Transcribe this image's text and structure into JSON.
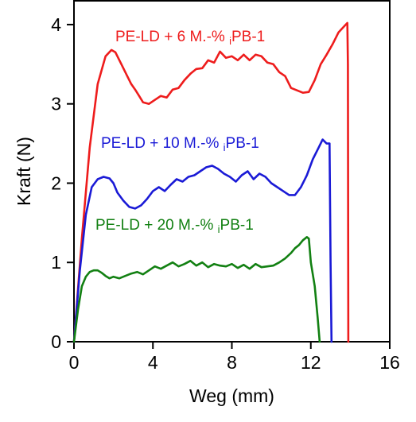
{
  "chart_data": {
    "type": "line",
    "title": "",
    "xlabel": "Weg (mm)",
    "ylabel": "Kraft (N)",
    "xlim": [
      0,
      16
    ],
    "ylim": [
      0,
      4.3
    ],
    "xticks": [
      "0",
      "4",
      "8",
      "12",
      "16"
    ],
    "yticks": [
      "0",
      "1",
      "2",
      "3",
      "4"
    ],
    "grid": false,
    "legend": "inline labels above each curve",
    "series": [
      {
        "name": "PE-LD + 6 M.-% iPB-1",
        "label_prefix": "PE-LD + 6 M.-% ",
        "label_sub": "i",
        "label_suffix": "PB-1",
        "color": "#ee1c1c",
        "x": [
          0,
          0.4,
          0.8,
          1.2,
          1.6,
          1.9,
          2.1,
          2.4,
          2.7,
          2.9,
          3.1,
          3.3,
          3.5,
          3.8,
          4.1,
          4.4,
          4.7,
          5.0,
          5.3,
          5.6,
          5.9,
          6.2,
          6.5,
          6.8,
          7.1,
          7.4,
          7.7,
          8.0,
          8.3,
          8.6,
          8.9,
          9.2,
          9.5,
          9.8,
          10.1,
          10.4,
          10.7,
          11.0,
          11.3,
          11.6,
          11.9,
          12.2,
          12.5,
          12.8,
          13.1,
          13.4,
          13.7,
          13.85,
          13.88,
          13.9
        ],
        "y": [
          0,
          1.3,
          2.45,
          3.25,
          3.6,
          3.68,
          3.65,
          3.5,
          3.35,
          3.25,
          3.18,
          3.1,
          3.02,
          3.0,
          3.05,
          3.1,
          3.08,
          3.18,
          3.2,
          3.3,
          3.38,
          3.44,
          3.45,
          3.55,
          3.52,
          3.66,
          3.58,
          3.6,
          3.55,
          3.62,
          3.55,
          3.62,
          3.6,
          3.52,
          3.5,
          3.4,
          3.35,
          3.2,
          3.17,
          3.14,
          3.15,
          3.3,
          3.5,
          3.62,
          3.75,
          3.9,
          3.98,
          4.02,
          3.5,
          0
        ]
      },
      {
        "name": "PE-LD + 10 M.-% iPB-1",
        "label_prefix": "PE-LD + 10 M.-% ",
        "label_sub": "i",
        "label_suffix": "PB-1",
        "color": "#1a1ad6",
        "x": [
          0,
          0.3,
          0.6,
          0.9,
          1.2,
          1.5,
          1.8,
          2.0,
          2.2,
          2.5,
          2.8,
          3.1,
          3.4,
          3.7,
          4.0,
          4.3,
          4.6,
          4.9,
          5.2,
          5.5,
          5.8,
          6.1,
          6.4,
          6.7,
          7.0,
          7.3,
          7.6,
          7.9,
          8.2,
          8.5,
          8.8,
          9.1,
          9.4,
          9.7,
          10.0,
          10.3,
          10.6,
          10.9,
          11.2,
          11.5,
          11.8,
          12.1,
          12.4,
          12.6,
          12.8,
          12.95,
          13.0,
          13.05
        ],
        "y": [
          0,
          0.9,
          1.6,
          1.95,
          2.05,
          2.08,
          2.06,
          2.0,
          1.88,
          1.78,
          1.7,
          1.68,
          1.72,
          1.8,
          1.9,
          1.95,
          1.9,
          1.98,
          2.05,
          2.02,
          2.08,
          2.1,
          2.15,
          2.2,
          2.22,
          2.18,
          2.12,
          2.08,
          2.02,
          2.1,
          2.15,
          2.05,
          2.12,
          2.08,
          2.0,
          1.95,
          1.9,
          1.85,
          1.85,
          1.95,
          2.1,
          2.3,
          2.45,
          2.55,
          2.5,
          2.5,
          1.0,
          0
        ]
      },
      {
        "name": "PE-LD + 20 M.-% iPB-1",
        "label_prefix": "PE-LD + 20 M.-% ",
        "label_sub": "i",
        "label_suffix": "PB-1",
        "color": "#128012",
        "x": [
          0,
          0.2,
          0.4,
          0.6,
          0.8,
          1.0,
          1.2,
          1.4,
          1.6,
          1.8,
          2.0,
          2.3,
          2.6,
          2.9,
          3.2,
          3.5,
          3.8,
          4.1,
          4.4,
          4.7,
          5.0,
          5.3,
          5.6,
          5.9,
          6.2,
          6.5,
          6.8,
          7.1,
          7.4,
          7.7,
          8.0,
          8.3,
          8.6,
          8.9,
          9.2,
          9.5,
          9.8,
          10.1,
          10.4,
          10.7,
          11.0,
          11.2,
          11.4,
          11.6,
          11.8,
          11.9,
          12.0,
          12.2,
          12.35,
          12.45
        ],
        "y": [
          0,
          0.4,
          0.7,
          0.82,
          0.88,
          0.9,
          0.9,
          0.87,
          0.83,
          0.8,
          0.82,
          0.8,
          0.83,
          0.86,
          0.88,
          0.85,
          0.9,
          0.95,
          0.92,
          0.96,
          1.0,
          0.95,
          0.98,
          1.02,
          0.96,
          1.0,
          0.94,
          0.98,
          0.96,
          0.95,
          0.98,
          0.93,
          0.97,
          0.92,
          0.98,
          0.94,
          0.95,
          0.96,
          1.0,
          1.05,
          1.12,
          1.18,
          1.22,
          1.28,
          1.32,
          1.3,
          1.0,
          0.7,
          0.3,
          0
        ]
      }
    ]
  }
}
